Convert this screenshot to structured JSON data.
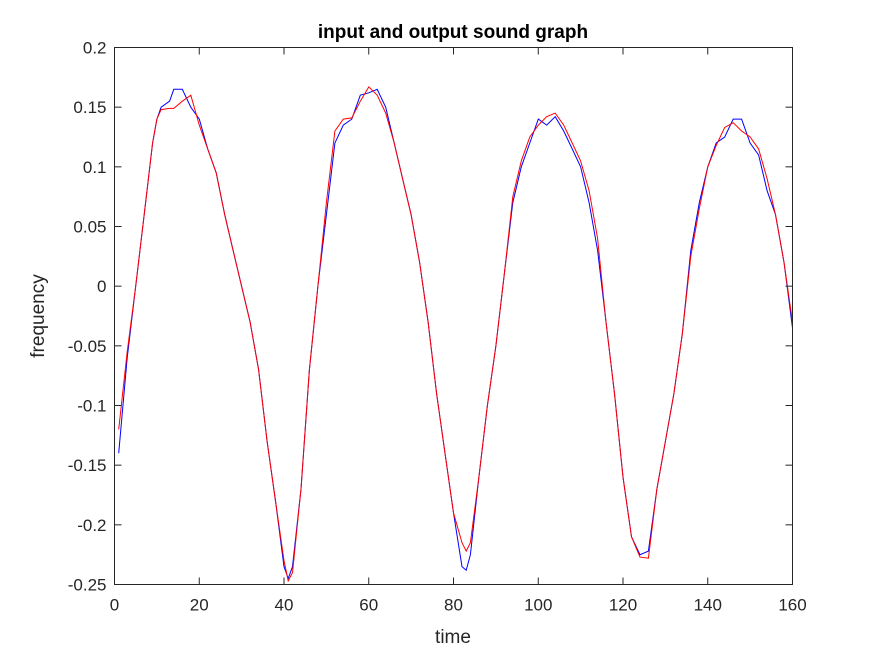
{
  "chart_data": {
    "type": "line",
    "title": "input and output sound graph",
    "xlabel": "time",
    "ylabel": "frequency",
    "xlim": [
      0,
      160
    ],
    "ylim": [
      -0.25,
      0.2
    ],
    "xticks": [
      0,
      20,
      40,
      60,
      80,
      100,
      120,
      140,
      160
    ],
    "xtick_labels": [
      "0",
      "20",
      "40",
      "60",
      "80",
      "100",
      "120",
      "140",
      "160"
    ],
    "yticks": [
      0.2,
      0.15,
      0.1,
      0.05,
      0,
      -0.05,
      -0.1,
      -0.15,
      -0.2,
      -0.25
    ],
    "ytick_labels": [
      "0.2",
      "0.15",
      "0.1",
      "0.05",
      "0",
      "-0.05",
      "-0.1",
      "-0.15",
      "-0.2",
      "-0.25"
    ],
    "grid": false,
    "legend": null,
    "series": [
      {
        "name": "input",
        "color": "#0000ff",
        "x": [
          1,
          3,
          5,
          7,
          9,
          10,
          11,
          13,
          14,
          16,
          18,
          20,
          22,
          24,
          26,
          28,
          30,
          32,
          34,
          36,
          38,
          40,
          41,
          42,
          44,
          46,
          48,
          50,
          52,
          54,
          56,
          58,
          60,
          62,
          64,
          66,
          68,
          70,
          72,
          74,
          76,
          78,
          80,
          82,
          83,
          84,
          86,
          88,
          90,
          92,
          94,
          96,
          98,
          100,
          102,
          104,
          106,
          108,
          110,
          112,
          114,
          116,
          118,
          120,
          122,
          124,
          126,
          128,
          130,
          132,
          134,
          136,
          138,
          140,
          142,
          144,
          146,
          148,
          150,
          152,
          154,
          156,
          158,
          160
        ],
        "values": [
          -0.14,
          -0.06,
          0.0,
          0.06,
          0.12,
          0.14,
          0.15,
          0.155,
          0.165,
          0.165,
          0.15,
          0.14,
          0.115,
          0.095,
          0.06,
          0.03,
          0.0,
          -0.03,
          -0.07,
          -0.13,
          -0.18,
          -0.235,
          -0.245,
          -0.235,
          -0.17,
          -0.07,
          0.0,
          0.06,
          0.12,
          0.135,
          0.14,
          0.16,
          0.162,
          0.165,
          0.15,
          0.12,
          0.09,
          0.06,
          0.02,
          -0.03,
          -0.09,
          -0.14,
          -0.19,
          -0.235,
          -0.238,
          -0.225,
          -0.16,
          -0.1,
          -0.05,
          0.01,
          0.07,
          0.1,
          0.12,
          0.14,
          0.135,
          0.142,
          0.13,
          0.115,
          0.1,
          0.07,
          0.03,
          -0.03,
          -0.09,
          -0.16,
          -0.21,
          -0.225,
          -0.222,
          -0.17,
          -0.13,
          -0.09,
          -0.04,
          0.03,
          0.07,
          0.1,
          0.12,
          0.125,
          0.14,
          0.14,
          0.12,
          0.11,
          0.08,
          0.06,
          0.02,
          -0.035
        ]
      },
      {
        "name": "output",
        "color": "#ff0000",
        "x": [
          1,
          3,
          5,
          7,
          9,
          10,
          11,
          13,
          14,
          16,
          18,
          20,
          22,
          24,
          26,
          28,
          30,
          32,
          34,
          36,
          38,
          40,
          41,
          42,
          44,
          46,
          48,
          50,
          52,
          54,
          56,
          58,
          60,
          62,
          64,
          66,
          68,
          70,
          72,
          74,
          76,
          78,
          80,
          82,
          83,
          84,
          86,
          88,
          90,
          92,
          94,
          96,
          98,
          100,
          102,
          104,
          106,
          108,
          110,
          112,
          114,
          116,
          118,
          120,
          122,
          124,
          126,
          128,
          130,
          132,
          134,
          136,
          138,
          140,
          142,
          144,
          146,
          148,
          150,
          152,
          154,
          156,
          158,
          160
        ],
        "values": [
          -0.12,
          -0.055,
          0.0,
          0.06,
          0.12,
          0.14,
          0.148,
          0.149,
          0.149,
          0.155,
          0.16,
          0.135,
          0.115,
          0.095,
          0.06,
          0.03,
          0.0,
          -0.03,
          -0.07,
          -0.13,
          -0.18,
          -0.23,
          -0.247,
          -0.24,
          -0.17,
          -0.07,
          0.0,
          0.07,
          0.13,
          0.14,
          0.141,
          0.155,
          0.167,
          0.16,
          0.145,
          0.12,
          0.09,
          0.06,
          0.02,
          -0.03,
          -0.09,
          -0.14,
          -0.19,
          -0.215,
          -0.222,
          -0.215,
          -0.16,
          -0.1,
          -0.05,
          0.01,
          0.075,
          0.105,
          0.125,
          0.135,
          0.142,
          0.145,
          0.135,
          0.12,
          0.105,
          0.08,
          0.04,
          -0.03,
          -0.09,
          -0.16,
          -0.21,
          -0.227,
          -0.228,
          -0.17,
          -0.13,
          -0.09,
          -0.04,
          0.025,
          0.065,
          0.1,
          0.118,
          0.133,
          0.137,
          0.13,
          0.125,
          0.115,
          0.09,
          0.06,
          0.02,
          -0.03
        ]
      }
    ]
  }
}
